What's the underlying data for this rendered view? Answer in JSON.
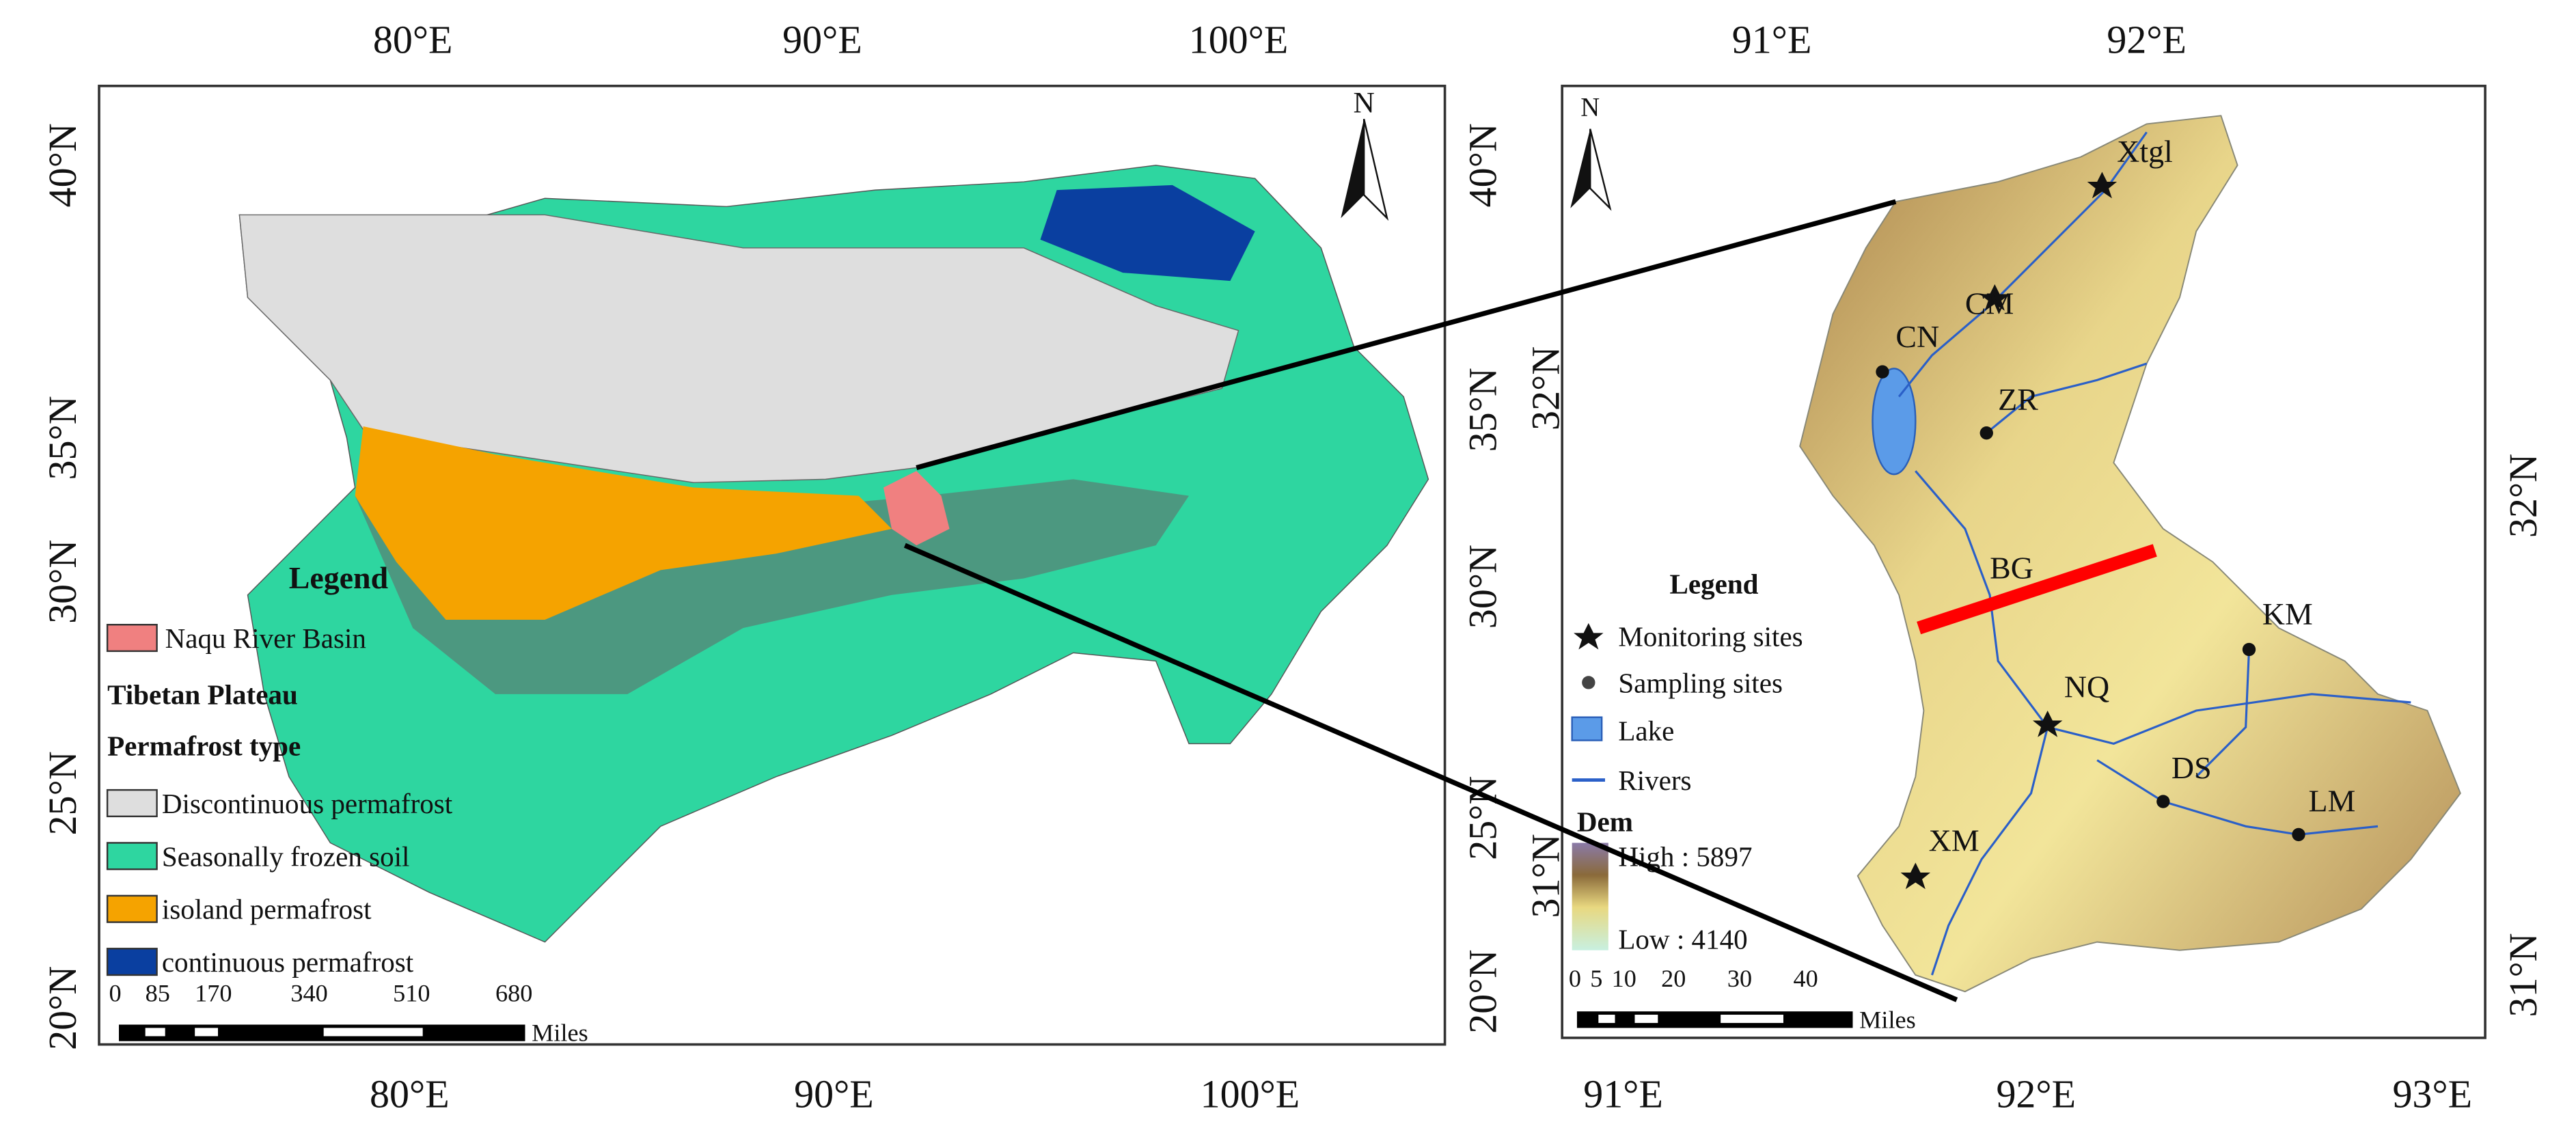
{
  "left_map": {
    "north": "N",
    "top_ticks": [
      "80°E",
      "90°E",
      "100°E"
    ],
    "bottom_ticks": [
      "80°E",
      "90°E",
      "100°E"
    ],
    "left_ticks": [
      "40°N",
      "35°N",
      "30°N",
      "25°N",
      "20°N"
    ],
    "right_ticks": [
      "40°N",
      "35°N",
      "30°N",
      "25°N",
      "20°N"
    ],
    "legend": {
      "title": "Legend",
      "basin": "Naqu River Basin",
      "group": "Tibetan Plateau",
      "subtitle": "Permafrost type",
      "items": [
        "Discontinuous permafrost",
        "Seasonally frozen soil",
        "isoland permafrost",
        "continuous permafrost"
      ]
    },
    "scale": {
      "labels": [
        "0",
        "85",
        "170",
        "340",
        "510",
        "680"
      ],
      "unit": "Miles"
    }
  },
  "right_map": {
    "north": "N",
    "top_ticks": [
      "91°E",
      "92°E"
    ],
    "bottom_ticks": [
      "91°E",
      "92°E",
      "93°E"
    ],
    "left_ticks": [
      "32°N",
      "31°N"
    ],
    "right_ticks": [
      "32°N",
      "31°N"
    ],
    "sites": [
      "Xtgl",
      "CM",
      "CN",
      "ZR",
      "BG",
      "KM",
      "NQ",
      "DS",
      "LM",
      "XM"
    ],
    "legend": {
      "title": "Legend",
      "items": [
        "Monitoring sites",
        "Sampling sites",
        "Lake",
        "Rivers"
      ],
      "dem_title": "Dem",
      "high": "High : 5897",
      "low": "Low : 4140"
    },
    "scale": {
      "labels": [
        "0",
        "5",
        "10",
        "20",
        "30",
        "40"
      ],
      "unit": "Miles"
    }
  }
}
